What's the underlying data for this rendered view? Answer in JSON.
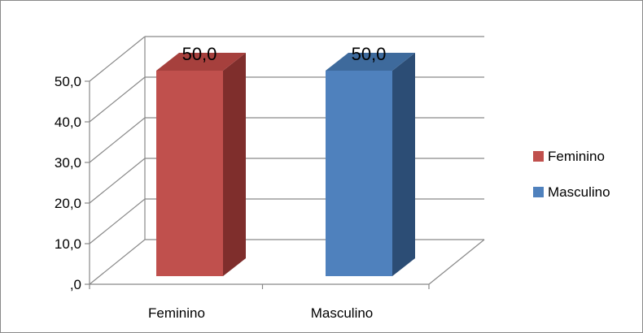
{
  "chart_data": {
    "type": "bar",
    "categories": [
      "Feminino",
      "Masculino"
    ],
    "values": [
      50.0,
      50.0
    ],
    "data_labels": [
      "50,0",
      "50,0"
    ],
    "ylim": [
      0,
      50
    ],
    "y_ticks": [
      ",0",
      "10,0",
      "20,0",
      "30,0",
      "40,0",
      "50,0"
    ],
    "legend": [
      "Feminino",
      "Masculino"
    ],
    "legend_position": "right",
    "grid": true,
    "three_d": true,
    "colors": {
      "bar_front": [
        "#c0504d",
        "#4f81bd"
      ],
      "bar_side": [
        "#7f2e2c",
        "#2c4d75"
      ],
      "bar_top": [
        "#a6403d",
        "#3e6a9c"
      ],
      "grid": "#898989",
      "frame": "#898989"
    }
  }
}
